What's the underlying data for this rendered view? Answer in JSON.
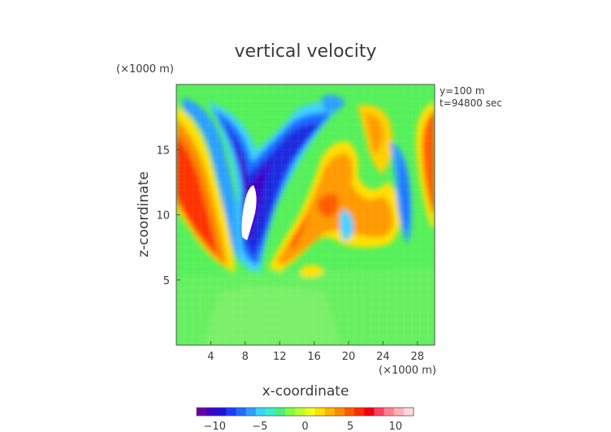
{
  "chart_data": {
    "type": "heatmap",
    "title": "vertical velocity",
    "xlabel": "x-coordinate",
    "ylabel": "z-coordinate",
    "x_unit": "(×1000 m)",
    "y_unit": "(×1000 m)",
    "annotations": [
      "y=100 m",
      "t=94800 sec"
    ],
    "xlim": [
      0,
      30
    ],
    "ylim": [
      0,
      20
    ],
    "xticks": [
      4,
      8,
      12,
      16,
      20,
      24,
      28
    ],
    "yticks": [
      5,
      10,
      15
    ],
    "colorbar": {
      "range": [
        -12,
        12
      ],
      "ticks": [
        -10,
        -5,
        0,
        5,
        10
      ],
      "colors": [
        "#6a00a8",
        "#3f00c8",
        "#1f10e0",
        "#1a3cff",
        "#1f6cff",
        "#2aa0ff",
        "#3cd2ff",
        "#36f0c8",
        "#4df07a",
        "#80ff40",
        "#b8ff2e",
        "#f0ff20",
        "#ffe000",
        "#ffb400",
        "#ff8a00",
        "#ff5a00",
        "#ff2a00",
        "#f00010",
        "#ff4060",
        "#ff8090",
        "#ffb0b8",
        "#ffd8dc"
      ]
    },
    "grid": false
  }
}
